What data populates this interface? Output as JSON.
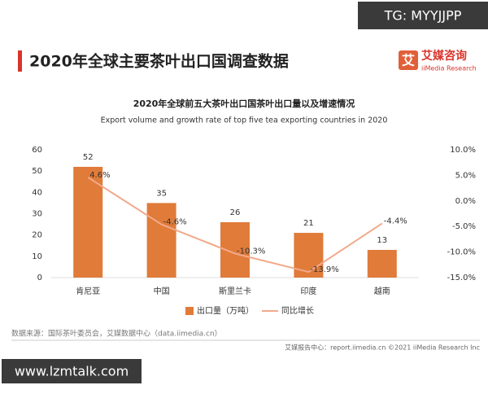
{
  "watermark_top": "TG: MYYJJPP",
  "header": {
    "title": "2020年全球主要茶叶出口国调查数据",
    "logo_icon": "艾",
    "logo_cn": "艾媒咨询",
    "logo_en": "iiMedia Research"
  },
  "chart_data": {
    "type": "bar",
    "title": "2020年全球前五大茶叶出口国茶叶出口量以及增速情况",
    "subtitle": "Export volume and growth rate of top five tea exporting countries in 2020",
    "categories": [
      "肯尼亚",
      "中国",
      "斯里兰卡",
      "印度",
      "越南"
    ],
    "series": [
      {
        "name": "出口量（万吨）",
        "color": "#e07b39",
        "values": [
          52,
          35,
          26,
          21,
          13
        ]
      },
      {
        "name": "同比增长",
        "type": "line",
        "axis": "y2",
        "color": "#f2a98a",
        "values": [
          4.6,
          -4.6,
          -10.3,
          -13.9,
          -4.4
        ],
        "value_labels": [
          "4.6%",
          "-4.6%",
          "-10.3%",
          "-13.9%",
          "-4.4%"
        ]
      }
    ],
    "ylim": [
      0,
      60
    ],
    "yticks": [
      0,
      10,
      20,
      30,
      40,
      50,
      60
    ],
    "y2lim": [
      -15,
      10
    ],
    "y2ticks": [
      {
        "value": -15,
        "label": "-15.0%"
      },
      {
        "value": -10,
        "label": "-10.0%"
      },
      {
        "value": -5,
        "label": "-5.0%"
      },
      {
        "value": 0,
        "label": "0.0%"
      },
      {
        "value": 5,
        "label": "5.0%"
      },
      {
        "value": 10,
        "label": "10.0%"
      }
    ]
  },
  "source": "数据来源：国际茶叶委员会，艾媒数据中心（data.iimedia.cn）",
  "footer": "艾媒报告中心：report.iimedia.cn   ©2021  iiMedia Research  Inc",
  "watermark_bottom": "www.lzmtalk.com"
}
